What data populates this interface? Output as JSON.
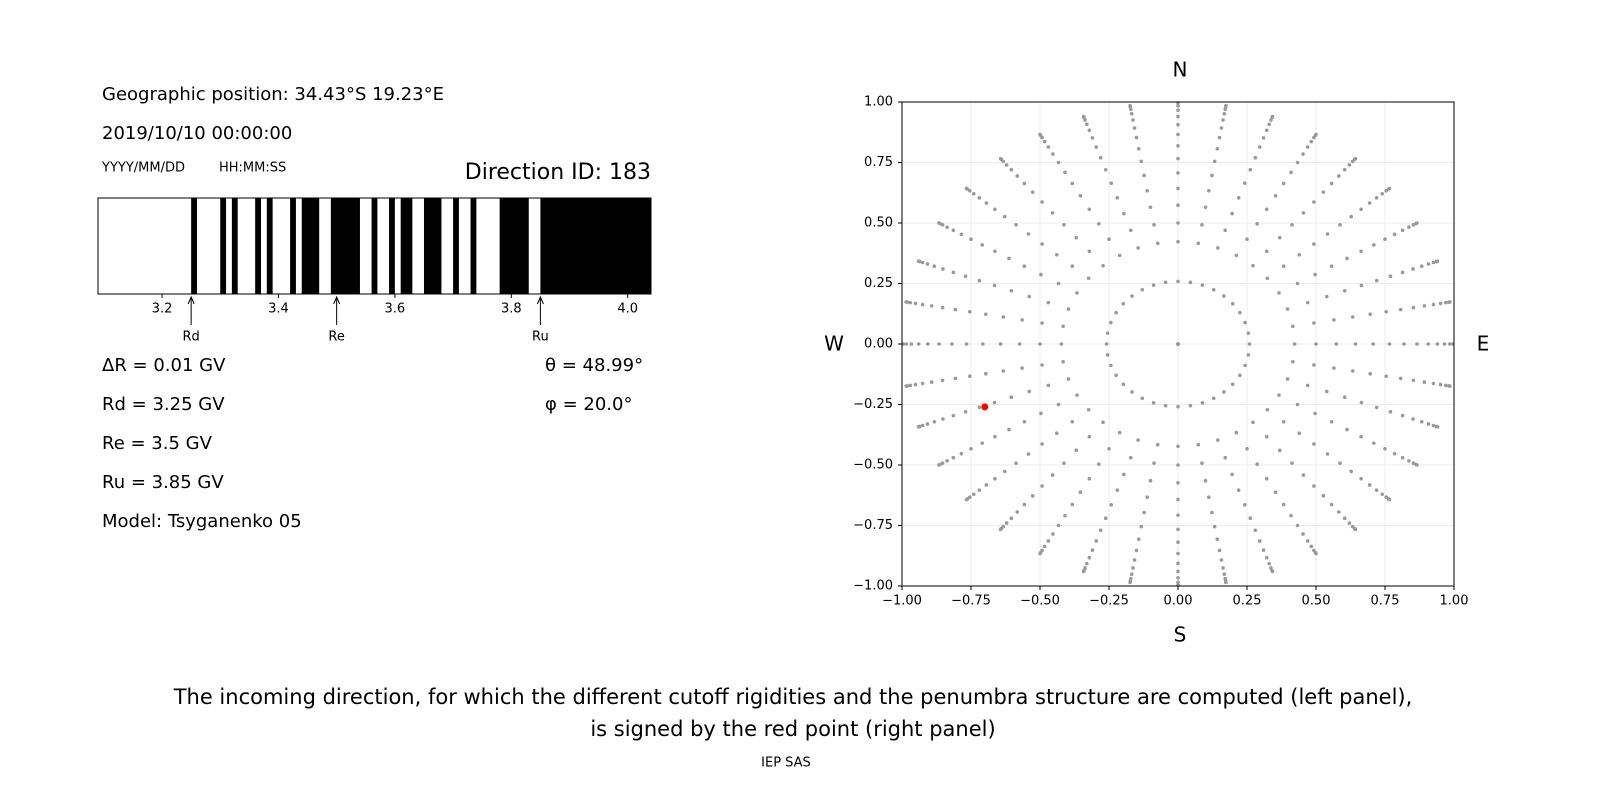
{
  "info": {
    "geographic_position": "Geographic position: 34.43°S 19.23°E",
    "datetime": "2019/10/10 00:00:00",
    "date_format": "YYYY/MM/DD",
    "time_format": "HH:MM:SS",
    "direction_id": "Direction ID: 183",
    "delta_r": "ΔR = 0.01 GV",
    "rd": "Rd = 3.25 GV",
    "re": "Re = 3.5 GV",
    "ru": "Ru = 3.85 GV",
    "model": "Model: Tsyganenko 05",
    "theta": "θ = 48.99°",
    "phi": "φ = 20.0°"
  },
  "chart_data": [
    {
      "type": "penumbra",
      "xlim": [
        3.09,
        4.04
      ],
      "xticks": [
        3.2,
        3.4,
        3.6,
        3.8,
        {
          "value": 4.0,
          "label": "4.0"
        }
      ],
      "color": "#000000",
      "bands": [
        [
          3.25,
          3.26
        ],
        [
          3.3,
          3.31
        ],
        [
          3.32,
          3.33
        ],
        [
          3.36,
          3.37
        ],
        [
          3.38,
          3.39
        ],
        [
          3.42,
          3.43
        ],
        [
          3.44,
          3.47
        ],
        [
          3.49,
          3.54
        ],
        [
          3.56,
          3.57
        ],
        [
          3.59,
          3.6
        ],
        [
          3.61,
          3.63
        ],
        [
          3.65,
          3.68
        ],
        [
          3.7,
          3.71
        ],
        [
          3.73,
          3.74
        ],
        [
          3.78,
          3.83
        ],
        [
          3.85,
          4.04
        ]
      ],
      "markers": {
        "labels": [
          "Rd",
          "Re",
          "Ru"
        ],
        "values": [
          3.25,
          3.5,
          3.85
        ]
      }
    },
    {
      "type": "polar-scatter",
      "xlim": [
        -1,
        1
      ],
      "ylim": [
        -1,
        1
      ],
      "xticks": [
        {
          "value": -1,
          "label": "−1.00"
        },
        {
          "value": -0.75,
          "label": "−0.75"
        },
        {
          "value": -0.5,
          "label": "−0.50"
        },
        {
          "value": -0.25,
          "label": "−0.25"
        },
        {
          "value": 0,
          "label": "0.00"
        },
        {
          "value": 0.25,
          "label": "0.25"
        },
        {
          "value": 0.5,
          "label": "0.50"
        },
        {
          "value": 0.75,
          "label": "0.75"
        },
        {
          "value": 1,
          "label": "1.00"
        }
      ],
      "yticks": [
        {
          "value": -1,
          "label": "−1.00"
        },
        {
          "value": -0.75,
          "label": "−0.75"
        },
        {
          "value": -0.5,
          "label": "−0.50"
        },
        {
          "value": -0.25,
          "label": "−0.25"
        },
        {
          "value": 0,
          "label": "0.00"
        },
        {
          "value": 0.25,
          "label": "0.25"
        },
        {
          "value": 0.5,
          "label": "0.50"
        },
        {
          "value": 0.75,
          "label": "0.75"
        },
        {
          "value": 1,
          "label": "1.00"
        }
      ],
      "grid": true,
      "color": "#999999",
      "zenith_deg": [
        0,
        15,
        25,
        30,
        35,
        40,
        45,
        50,
        55,
        60,
        65,
        70,
        75,
        80,
        85,
        90
      ],
      "azimuth_deg": [
        0,
        10,
        20,
        30,
        40,
        50,
        60,
        70,
        80,
        90,
        100,
        110,
        120,
        130,
        140,
        150,
        160,
        170,
        180,
        190,
        200,
        210,
        220,
        230,
        240,
        250,
        260,
        270,
        280,
        290,
        300,
        310,
        320,
        330,
        340,
        350
      ],
      "highlight": {
        "x": [
          -0.7
        ],
        "y": [
          -0.26
        ],
        "color": "#ff0000"
      },
      "compass": {
        "north": "N",
        "south": "S",
        "west": "W",
        "east": "E"
      }
    }
  ],
  "caption": [
    "The incoming direction, for which the different cutoff rigidities and the penumbra structure are computed (left panel),",
    "is signed by the red point (right panel)"
  ],
  "footer": "IEP SAS"
}
